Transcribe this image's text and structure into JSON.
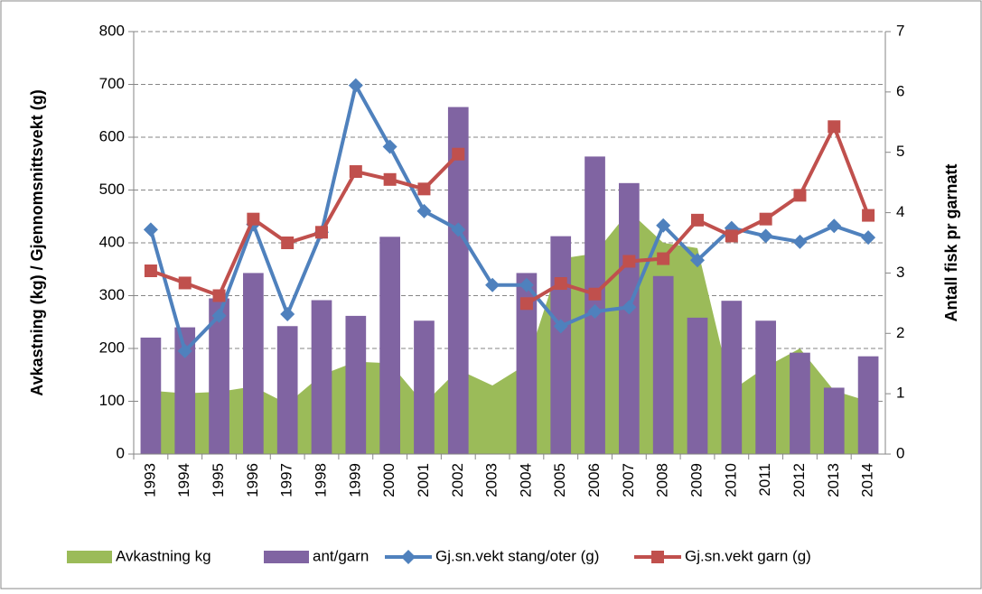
{
  "chart_data": {
    "type": "combo",
    "y_title": "Avkastning (kg) / Gjennomsnittsvekt (g)",
    "y2_title": "Antall fisk pr garnatt",
    "categories": [
      "1993",
      "1994",
      "1995",
      "1996",
      "1997",
      "1998",
      "1999",
      "2000",
      "2001",
      "2002",
      "2003",
      "2004",
      "2005",
      "2006",
      "2007",
      "2008",
      "2009",
      "2010",
      "2011",
      "2012",
      "2013",
      "2014"
    ],
    "ylim": [
      0,
      800
    ],
    "yticks": [
      0,
      100,
      200,
      300,
      400,
      500,
      600,
      700,
      800
    ],
    "y2lim": [
      0,
      7
    ],
    "y2ticks": [
      0,
      1,
      2,
      3,
      4,
      5,
      6,
      7
    ],
    "grid": true,
    "legend": "bottom",
    "series": [
      {
        "name": "Avkastning kg",
        "kind": "area",
        "color": "#9bbb59",
        "values": [
          120,
          115,
          118,
          128,
          95,
          150,
          175,
          172,
          95,
          160,
          130,
          170,
          370,
          380,
          460,
          400,
          390,
          120,
          165,
          200,
          120,
          100
        ]
      },
      {
        "name": "ant/garn",
        "kind": "bar",
        "axis": "y2",
        "color": "#8064a2",
        "values": [
          1.93,
          2.1,
          2.58,
          3.0,
          2.12,
          2.55,
          2.29,
          3.6,
          2.21,
          5.75,
          null,
          3.0,
          3.61,
          4.93,
          4.49,
          2.95,
          2.26,
          2.54,
          2.21,
          1.68,
          1.1,
          1.62
        ]
      },
      {
        "name": "Gj.sn.vekt stang/oter (g)",
        "kind": "line",
        "marker": "diamond",
        "color": "#4f81bd",
        "values": [
          425,
          195,
          262,
          435,
          265,
          420,
          698,
          582,
          460,
          425,
          320,
          320,
          242,
          270,
          278,
          433,
          367,
          428,
          413,
          402,
          432,
          410
        ]
      },
      {
        "name": "Gj.sn.vekt garn (g)",
        "kind": "line",
        "marker": "square",
        "color": "#c0504d",
        "values": [
          347,
          324,
          300,
          445,
          400,
          420,
          535,
          520,
          502,
          568,
          null,
          285,
          323,
          303,
          365,
          370,
          443,
          413,
          445,
          490,
          620,
          452
        ]
      }
    ]
  }
}
